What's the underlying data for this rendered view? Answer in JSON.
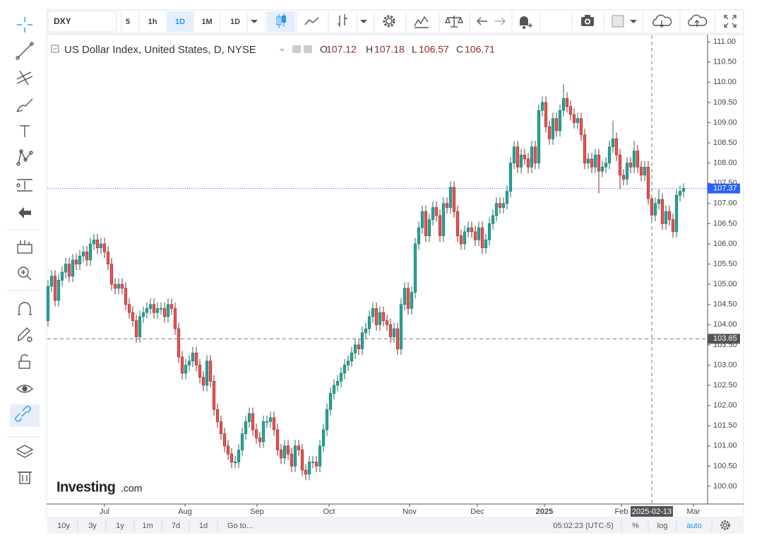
{
  "toolbar": {
    "symbol": "DXY",
    "intervals": [
      "5",
      "1h",
      "1D",
      "1M",
      "1D"
    ]
  },
  "bottom_bar": {
    "ranges": [
      "10y",
      "3y",
      "1y",
      "1m",
      "7d",
      "1d"
    ],
    "goto": "Go to...",
    "time": "05:02:23 (UTC-5)",
    "options": [
      "%",
      "log",
      "auto"
    ]
  },
  "chart_data": {
    "type": "candlestick",
    "title": "US Dollar Index, United States, D, NYSE",
    "ohlc_labels": {
      "open": "O",
      "high": "H",
      "low": "L",
      "close": "C"
    },
    "watermark": {
      "brand": "Investing",
      "suffix": ".com"
    },
    "up_color": "#26a69a",
    "down_color": "#ef5350",
    "categories": [
      null,
      null,
      null,
      null,
      null,
      null,
      null,
      null,
      null,
      null,
      null,
      null,
      null,
      null,
      null,
      null,
      null,
      null,
      null,
      null,
      null,
      null,
      null,
      null,
      null,
      null,
      null,
      null,
      null,
      null,
      null,
      null,
      null,
      null,
      null,
      null,
      null,
      null,
      null,
      null,
      null,
      null,
      null,
      null,
      null,
      null,
      null,
      null,
      null,
      null,
      null,
      null,
      null,
      null,
      null,
      null,
      null,
      null,
      null,
      null,
      null,
      null,
      null,
      null,
      null,
      null,
      null,
      null,
      null,
      null,
      null,
      null,
      null,
      null,
      null,
      null,
      null,
      null,
      null,
      null,
      null,
      null,
      null,
      null,
      null,
      null,
      null,
      null,
      null,
      null,
      null,
      null,
      null,
      null,
      null,
      null,
      null,
      null,
      null,
      null,
      null,
      null,
      null,
      null,
      null,
      null,
      null,
      null,
      null,
      null,
      null,
      null,
      null,
      null,
      null,
      null,
      null,
      null,
      null,
      null,
      null,
      null,
      null,
      null,
      null,
      null,
      null,
      null,
      null,
      null,
      null,
      null,
      null,
      null,
      null,
      null,
      null,
      null,
      null,
      null,
      null,
      null,
      null,
      null,
      null,
      null,
      null,
      null,
      null,
      null,
      null,
      null,
      null,
      null,
      null,
      null,
      null,
      null,
      null,
      null,
      null,
      null,
      null,
      null,
      null,
      null,
      null,
      null,
      null,
      null,
      null,
      null,
      null,
      null,
      null,
      null,
      null,
      null,
      null,
      null,
      null
    ],
    "open": [
      104.1,
      104.95,
      105.2,
      104.6,
      105.1,
      105.3,
      105.5,
      105.2,
      105.6,
      105.5,
      105.7,
      105.8,
      105.6,
      106.0,
      106.1,
      105.9,
      106.0,
      105.8,
      105.5,
      105.0,
      104.9,
      105.0,
      104.9,
      104.5,
      104.3,
      104.1,
      103.7,
      104.2,
      104.3,
      104.4,
      104.5,
      104.3,
      104.4,
      104.4,
      104.2,
      104.5,
      104.4,
      103.9,
      103.2,
      102.8,
      103.0,
      103.1,
      103.3,
      103.0,
      102.7,
      102.5,
      103.1,
      102.6,
      101.9,
      101.6,
      101.3,
      101.0,
      100.8,
      100.6,
      100.6,
      100.9,
      101.3,
      101.6,
      101.8,
      101.4,
      101.2,
      101.1,
      101.6,
      101.6,
      101.7,
      101.4,
      100.9,
      100.7,
      101.0,
      100.8,
      100.5,
      101.0,
      100.9,
      100.4,
      100.3,
      100.6,
      100.6,
      100.5,
      101.0,
      101.4,
      101.9,
      102.3,
      102.5,
      102.6,
      102.8,
      103.0,
      103.1,
      103.3,
      103.5,
      103.4,
      103.8,
      103.9,
      104.2,
      104.4,
      104.0,
      104.3,
      104.1,
      104.0,
      103.7,
      103.9,
      103.4,
      104.5,
      104.9,
      104.4,
      104.8,
      106.0,
      106.4,
      106.8,
      106.2,
      106.6,
      106.9,
      106.7,
      106.2,
      107.0,
      106.9,
      107.4,
      106.8,
      106.2,
      106.0,
      106.3,
      106.4,
      106.3,
      106.1,
      106.4,
      105.9,
      106.1,
      106.5,
      106.7,
      107.0,
      106.9,
      107.0,
      107.3,
      108.0,
      108.4,
      107.9,
      108.2,
      108.1,
      107.9,
      108.4,
      108.0,
      109.3,
      109.5,
      108.9,
      108.6,
      109.1,
      108.8,
      109.3,
      109.6,
      109.4,
      109.2,
      109.0,
      109.1,
      108.7,
      108.0,
      108.1,
      107.9,
      108.2,
      107.8,
      107.9,
      108.0,
      108.4,
      108.6,
      108.2,
      107.7,
      107.6,
      108.0,
      107.9,
      108.3,
      107.9,
      107.7,
      107.9,
      107.12,
      106.71,
      107.0,
      107.1,
      106.5,
      106.8,
      106.6,
      106.3,
      107.2,
      107.3
    ],
    "high": [
      105.1,
      105.35,
      105.35,
      105.25,
      105.45,
      105.65,
      105.65,
      105.75,
      105.75,
      105.85,
      105.95,
      105.95,
      106.15,
      106.25,
      106.25,
      106.15,
      106.15,
      105.95,
      105.65,
      105.15,
      105.15,
      105.15,
      105.05,
      104.65,
      104.45,
      104.25,
      104.35,
      104.45,
      104.55,
      104.65,
      104.65,
      104.55,
      104.55,
      104.55,
      104.65,
      104.65,
      104.55,
      104.05,
      103.35,
      103.15,
      103.25,
      103.45,
      103.45,
      103.15,
      102.85,
      103.25,
      103.25,
      102.75,
      102.05,
      101.75,
      101.45,
      101.15,
      100.95,
      100.75,
      101.05,
      101.45,
      101.75,
      101.95,
      101.95,
      101.55,
      101.35,
      101.75,
      101.75,
      101.85,
      101.85,
      101.55,
      101.05,
      101.15,
      101.15,
      100.95,
      101.15,
      101.15,
      101.05,
      100.55,
      100.75,
      100.75,
      100.75,
      101.15,
      101.55,
      102.05,
      102.45,
      102.65,
      102.75,
      102.95,
      103.15,
      103.25,
      103.45,
      103.65,
      103.65,
      103.95,
      104.05,
      104.35,
      104.55,
      104.55,
      104.45,
      104.45,
      104.25,
      104.15,
      104.05,
      104.05,
      104.65,
      105.05,
      105.05,
      104.95,
      106.15,
      106.55,
      106.95,
      106.95,
      106.75,
      107.05,
      107.05,
      106.85,
      107.15,
      107.15,
      107.55,
      107.55,
      106.95,
      106.35,
      106.45,
      106.55,
      106.55,
      106.45,
      106.55,
      106.55,
      106.25,
      106.65,
      106.85,
      107.15,
      107.15,
      107.15,
      107.45,
      108.15,
      108.55,
      108.55,
      108.35,
      108.35,
      108.25,
      108.55,
      108.55,
      109.45,
      109.65,
      109.65,
      109.05,
      109.25,
      109.25,
      109.45,
      109.95,
      109.75,
      109.55,
      109.35,
      109.25,
      109.25,
      108.85,
      108.25,
      108.25,
      108.35,
      108.35,
      108.05,
      108.15,
      108.55,
      109.05,
      108.75,
      108.35,
      107.85,
      108.15,
      108.15,
      108.55,
      108.45,
      108.05,
      108.05,
      108.05,
      107.18,
      107.15,
      107.35,
      107.25,
      106.95,
      106.95,
      106.75,
      107.35,
      107.45,
      107.5
    ],
    "low": [
      103.95,
      104.8,
      104.45,
      104.45,
      104.95,
      105.15,
      105.05,
      105.05,
      105.35,
      105.35,
      105.55,
      105.45,
      105.45,
      105.85,
      105.75,
      105.75,
      105.65,
      105.35,
      104.85,
      104.75,
      104.75,
      104.75,
      104.35,
      104.15,
      103.95,
      103.55,
      103.55,
      104.05,
      104.15,
      104.25,
      104.15,
      104.15,
      104.25,
      104.05,
      104.05,
      104.25,
      103.75,
      103.05,
      102.65,
      102.65,
      102.85,
      102.95,
      102.85,
      102.55,
      102.35,
      102.35,
      102.45,
      101.75,
      101.45,
      101.15,
      100.85,
      100.65,
      100.45,
      100.45,
      100.45,
      100.75,
      101.15,
      101.45,
      101.25,
      101.05,
      100.95,
      100.95,
      101.45,
      101.45,
      101.25,
      100.75,
      100.55,
      100.55,
      100.65,
      100.35,
      100.35,
      100.75,
      100.25,
      100.15,
      100.15,
      100.45,
      100.35,
      100.35,
      100.85,
      101.25,
      101.75,
      102.15,
      102.35,
      102.45,
      102.65,
      102.85,
      102.95,
      103.15,
      103.25,
      103.25,
      103.65,
      103.75,
      104.05,
      103.85,
      103.85,
      103.95,
      103.85,
      103.55,
      103.55,
      103.25,
      103.25,
      104.35,
      104.25,
      104.25,
      104.65,
      105.85,
      106.25,
      106.05,
      106.05,
      106.45,
      106.55,
      106.05,
      106.05,
      106.75,
      106.75,
      106.65,
      106.05,
      105.85,
      105.85,
      106.15,
      106.15,
      105.95,
      105.95,
      105.75,
      105.75,
      105.95,
      106.35,
      106.55,
      106.75,
      106.75,
      106.85,
      107.15,
      107.85,
      107.75,
      107.75,
      107.95,
      107.75,
      107.75,
      107.85,
      107.85,
      109.15,
      108.75,
      108.45,
      108.45,
      108.65,
      108.65,
      109.15,
      109.25,
      109.05,
      108.85,
      108.85,
      108.55,
      107.85,
      107.85,
      107.75,
      107.75,
      107.25,
      107.65,
      107.75,
      107.85,
      108.25,
      108.05,
      107.35,
      107.45,
      107.45,
      107.75,
      107.75,
      107.75,
      107.55,
      107.55,
      106.97,
      106.57,
      106.56,
      106.85,
      106.35,
      106.35,
      106.45,
      106.15,
      106.15,
      107.05,
      107.15
    ],
    "close": [
      104.95,
      105.2,
      104.6,
      105.1,
      105.3,
      105.5,
      105.2,
      105.6,
      105.5,
      105.7,
      105.8,
      105.6,
      106.0,
      106.1,
      105.9,
      106.0,
      105.8,
      105.5,
      105.0,
      104.9,
      105.0,
      104.9,
      104.5,
      104.3,
      104.1,
      103.7,
      104.2,
      104.3,
      104.4,
      104.5,
      104.3,
      104.4,
      104.4,
      104.2,
      104.5,
      104.4,
      103.9,
      103.2,
      102.8,
      103.0,
      103.1,
      103.3,
      103.0,
      102.7,
      102.5,
      103.1,
      102.6,
      101.9,
      101.6,
      101.3,
      101.0,
      100.8,
      100.6,
      100.6,
      100.9,
      101.3,
      101.6,
      101.8,
      101.4,
      101.2,
      101.1,
      101.6,
      101.6,
      101.7,
      101.4,
      100.9,
      100.7,
      101.0,
      100.8,
      100.5,
      101.0,
      100.9,
      100.4,
      100.3,
      100.6,
      100.6,
      100.5,
      101.0,
      101.4,
      101.9,
      102.3,
      102.5,
      102.6,
      102.8,
      103.0,
      103.1,
      103.3,
      103.5,
      103.4,
      103.8,
      103.9,
      104.2,
      104.4,
      104.0,
      104.3,
      104.1,
      104.0,
      103.7,
      103.9,
      103.4,
      104.5,
      104.9,
      104.4,
      104.8,
      106.0,
      106.4,
      106.8,
      106.2,
      106.6,
      106.9,
      106.7,
      106.2,
      107.0,
      106.9,
      107.4,
      106.8,
      106.2,
      106.0,
      106.3,
      106.4,
      106.3,
      106.1,
      106.4,
      105.9,
      106.1,
      106.5,
      106.7,
      107.0,
      106.9,
      107.0,
      107.3,
      108.0,
      108.4,
      107.9,
      108.2,
      108.1,
      107.9,
      108.4,
      108.0,
      109.3,
      109.5,
      108.9,
      108.6,
      109.1,
      108.8,
      109.3,
      109.6,
      109.4,
      109.2,
      109.0,
      109.1,
      108.7,
      108.0,
      108.1,
      107.9,
      108.2,
      107.8,
      107.9,
      108.0,
      108.4,
      108.6,
      108.2,
      107.7,
      107.6,
      108.0,
      107.9,
      108.3,
      107.9,
      107.7,
      107.9,
      107.12,
      106.71,
      107.0,
      107.1,
      106.5,
      106.8,
      106.6,
      106.3,
      107.2,
      107.3,
      107.37
    ],
    "ylim": [
      99.58,
      111.16
    ],
    "yticks": [
      {
        "value": 100,
        "label": "100.00"
      },
      {
        "value": 100.5,
        "label": "100.50"
      },
      {
        "value": 101,
        "label": "101.00"
      },
      {
        "value": 101.5,
        "label": "101.50"
      },
      {
        "value": 102,
        "label": "102.00"
      },
      {
        "value": 102.5,
        "label": "102.50"
      },
      {
        "value": 103,
        "label": "103.00"
      },
      {
        "value": 103.5,
        "label": "103.50"
      },
      {
        "value": 104,
        "label": "104.00"
      },
      {
        "value": 104.5,
        "label": "104.50"
      },
      {
        "value": 105,
        "label": "105.00"
      },
      {
        "value": 105.5,
        "label": "105.50"
      },
      {
        "value": 106,
        "label": "106.00"
      },
      {
        "value": 106.5,
        "label": "106.50"
      },
      {
        "value": 107,
        "label": "107.00"
      },
      {
        "value": 107.5,
        "label": "107.50"
      },
      {
        "value": 108,
        "label": "108.00"
      },
      {
        "value": 108.5,
        "label": "108.50"
      },
      {
        "value": 109,
        "label": "109.00"
      },
      {
        "value": 109.5,
        "label": "109.50"
      },
      {
        "value": 110,
        "label": "110.00"
      },
      {
        "value": 110.5,
        "label": "110.50"
      },
      {
        "value": 111,
        "label": "111.00"
      }
    ],
    "xticks": [
      {
        "value": 16,
        "label": "Jul"
      },
      {
        "value": 38.8,
        "label": "Aug"
      },
      {
        "value": 59.2,
        "label": "Sep"
      },
      {
        "value": 79.6,
        "label": "Oct"
      },
      {
        "value": 102.4,
        "label": "Nov"
      },
      {
        "value": 121.6,
        "label": "Dec"
      },
      {
        "value": 140.6,
        "label": "2025"
      },
      {
        "value": 162.4,
        "label": "Feb"
      },
      {
        "value": 182.8,
        "label": "Mar"
      }
    ],
    "crosshair": {
      "index": 171,
      "price": 103.65,
      "label": "2025-02-13"
    }
  }
}
